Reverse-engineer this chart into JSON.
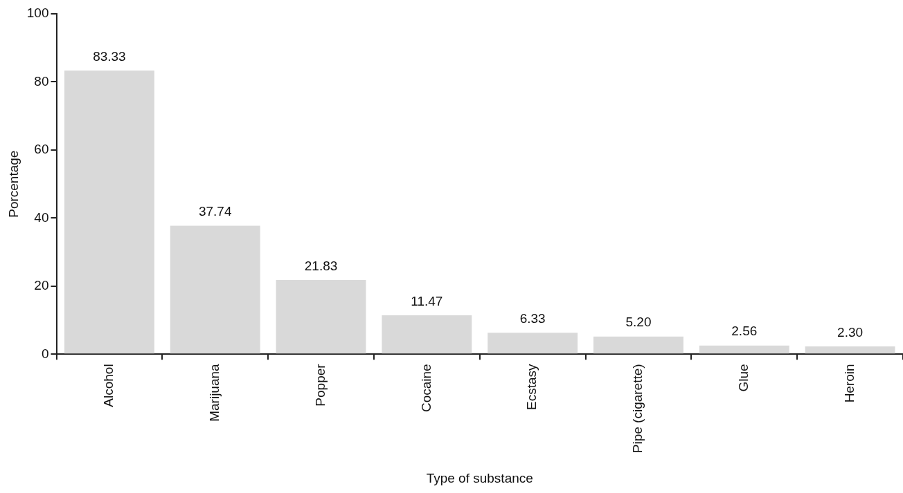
{
  "chart_data": {
    "type": "bar",
    "xlabel": "Type of substance",
    "ylabel": "Porcentage",
    "categories": [
      "Alcohol",
      "Marijuana",
      "Popper",
      "Cocaine",
      "Ecstasy",
      "Pipe (cigarette)",
      "Glue",
      "Heroin"
    ],
    "values": [
      83.33,
      37.74,
      21.83,
      11.47,
      6.33,
      5.2,
      2.56,
      2.3
    ],
    "value_labels": [
      "83.33",
      "37.74",
      "21.83",
      "11.47",
      "6.33",
      "5.20",
      "2.56",
      "2.30"
    ],
    "color": "#d9d9d9",
    "ylim": [
      0,
      100
    ],
    "yticks": [
      0,
      20,
      40,
      60,
      80,
      100
    ],
    "grid": false,
    "legend": false
  }
}
